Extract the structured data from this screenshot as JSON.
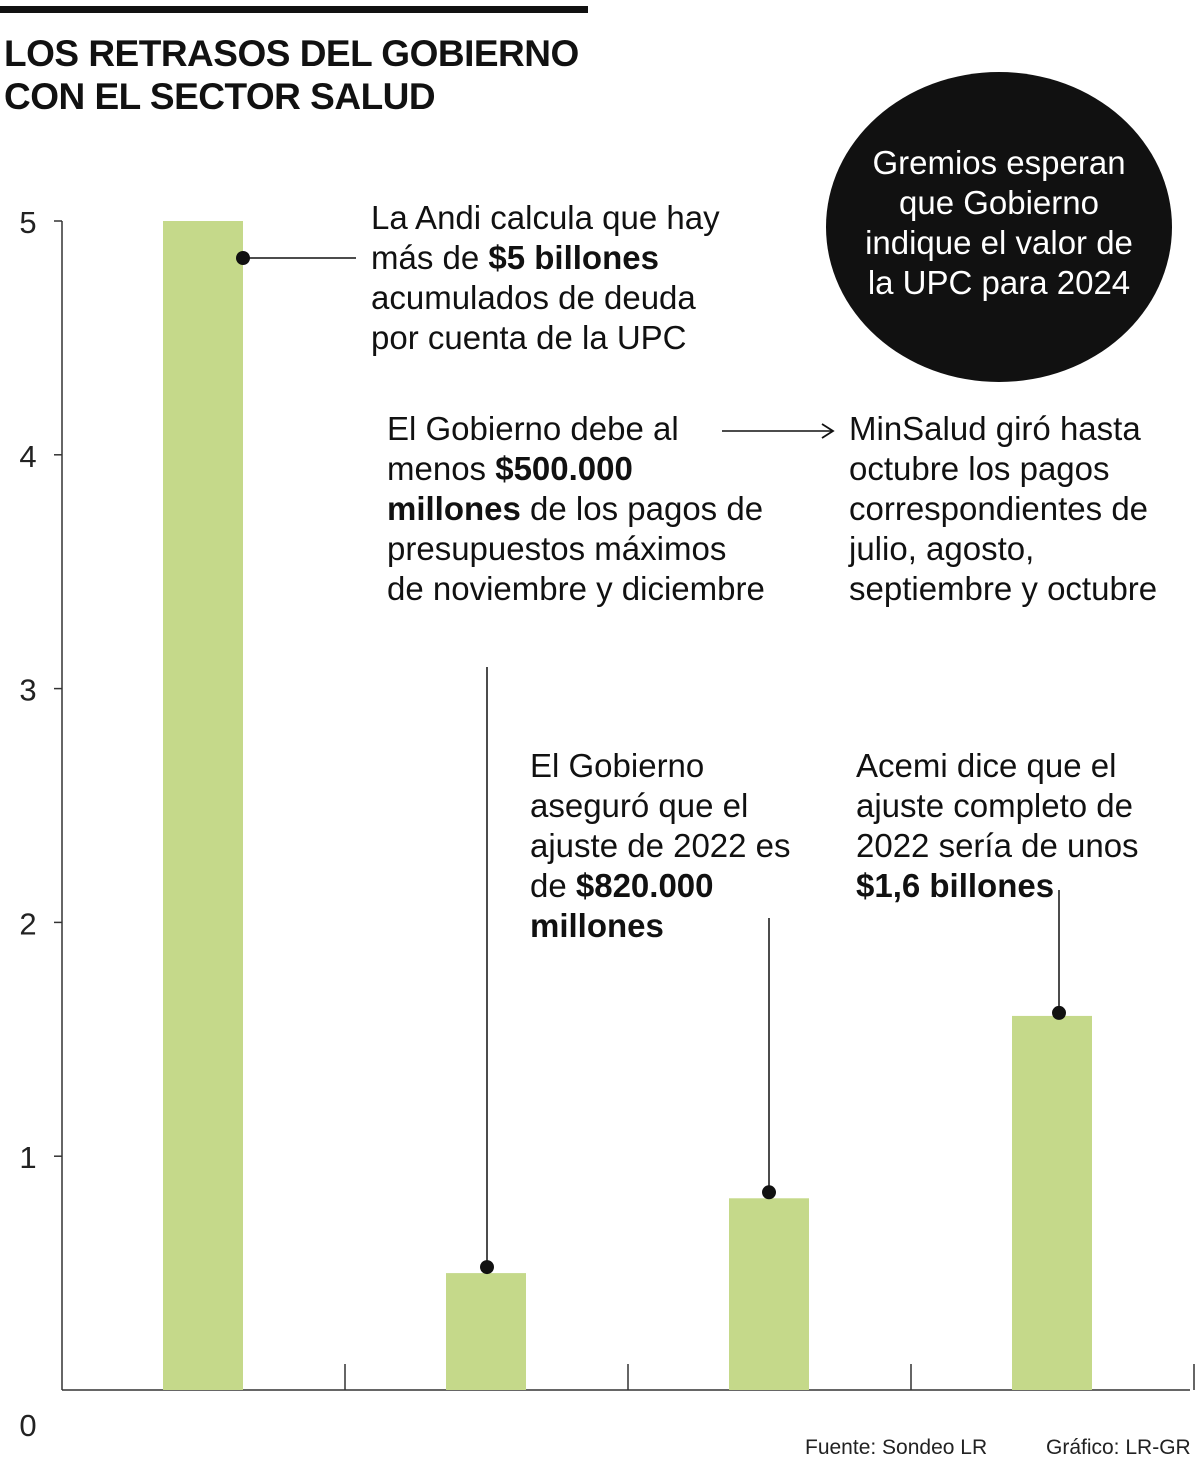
{
  "header": {
    "title_line1": "LOS RETRASOS DEL GOBIERNO",
    "title_line2": "CON EL SECTOR SALUD"
  },
  "circle": {
    "text": "Gremios esperan que Gobierno indique el valor de la UPC para 2024"
  },
  "notes": {
    "andi": {
      "pre": "La Andi calcula que hay más de ",
      "bold": "$5 billones",
      "post": " acumulados de deuda por cuenta de la UPC"
    },
    "debe": {
      "pre": "El Gobierno debe al menos ",
      "bold": "$500.000 millones",
      "post": " de los pagos de presupuestos máximos de noviembre y diciembre"
    },
    "minsalud": {
      "text": "MinSalud giró hasta octubre los pagos correspondientes de julio, agosto, septiembre y octubre"
    },
    "ajuste": {
      "pre": "El Gobierno aseguró que el ajuste de 2022 es de ",
      "bold": "$820.000 millones",
      "post": ""
    },
    "acemi": {
      "pre": "Acemi dice que el ajuste completo de 2022 sería de unos ",
      "bold": "$1,6 billones",
      "post": ""
    }
  },
  "footer": {
    "source": "Fuente: Sondeo LR",
    "credit": "Gráfico: LR-GR"
  },
  "chart_data": {
    "type": "bar",
    "title": "LOS RETRASOS DEL GOBIERNO CON EL SECTOR SALUD",
    "categories": [
      "",
      "",
      "",
      ""
    ],
    "values": [
      5,
      0.5,
      0.82,
      1.6
    ],
    "ylim": [
      0,
      5
    ],
    "yticks": [
      0,
      1,
      2,
      3,
      4,
      5
    ],
    "xlabel": "",
    "ylabel": "",
    "grid": false,
    "legend": "none",
    "colors": {
      "bar": "#c5d98a",
      "ink": "#111111",
      "axis": "#333333"
    }
  }
}
